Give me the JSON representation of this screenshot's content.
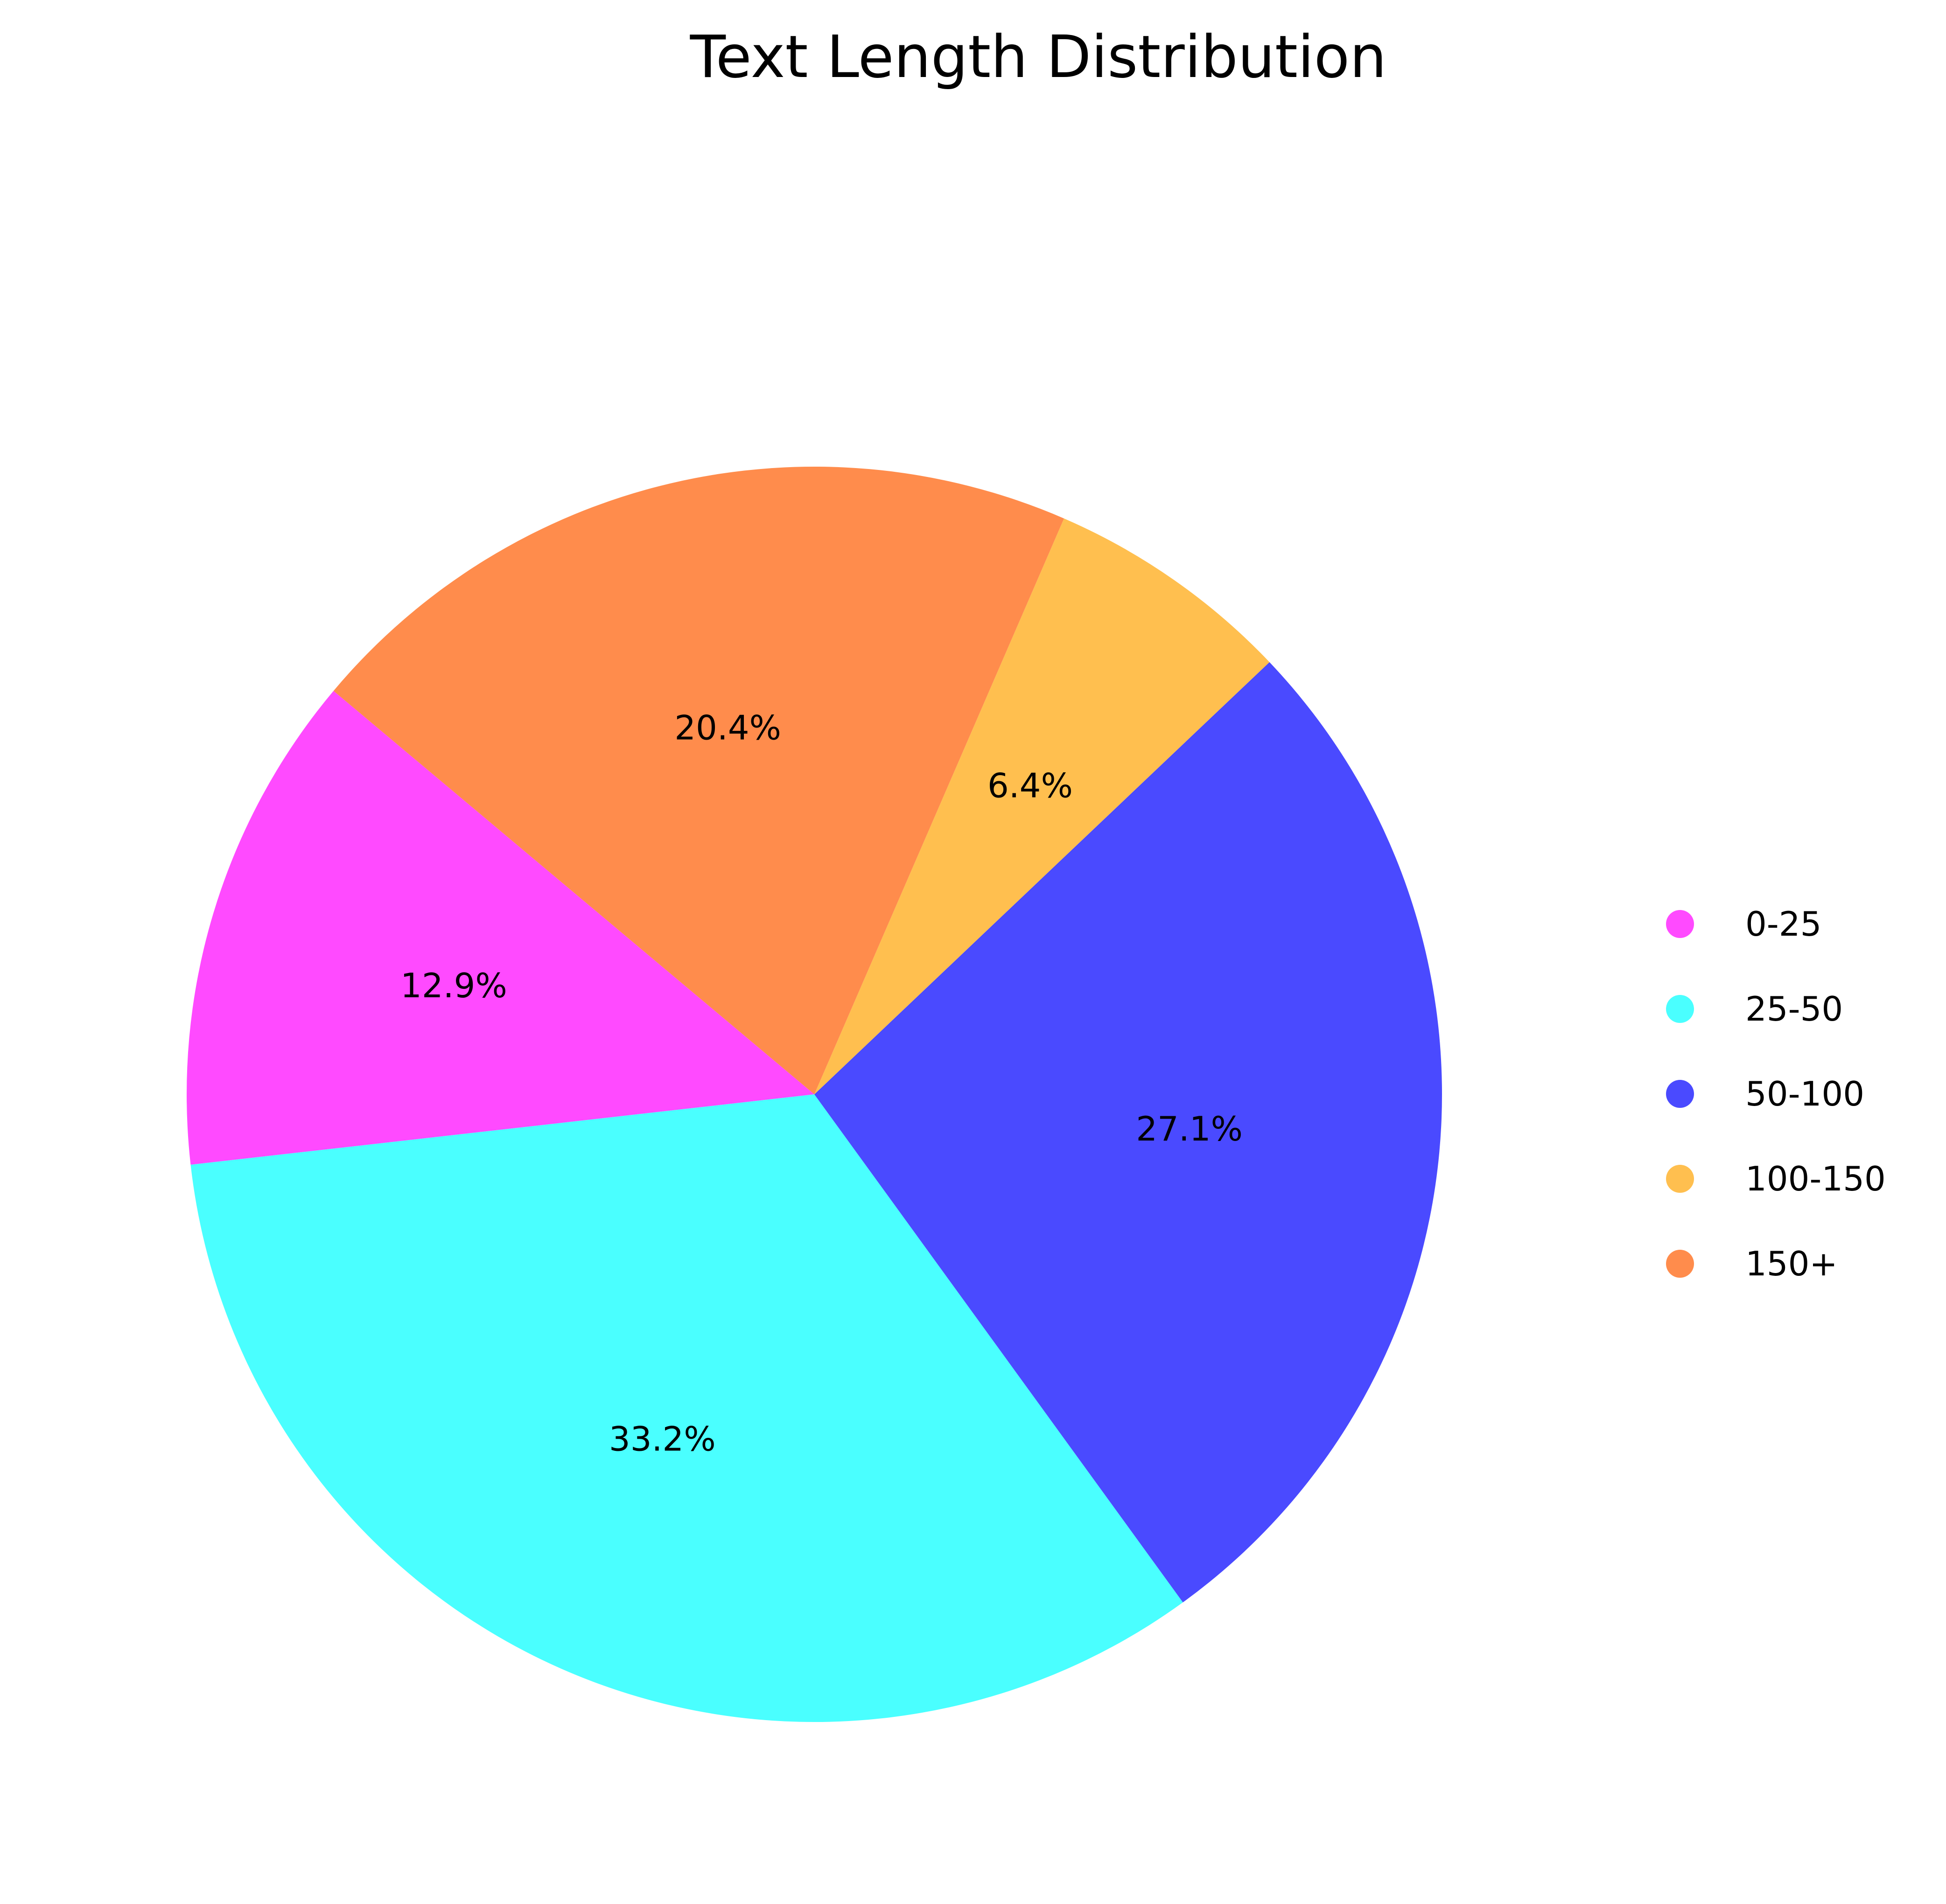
{
  "chart_data": {
    "type": "pie",
    "title": "Text Length Distribution",
    "categories": [
      "0-25",
      "25-50",
      "50-100",
      "100-150",
      "150+"
    ],
    "values": [
      12.9,
      33.2,
      27.1,
      6.4,
      20.4
    ],
    "labels": [
      "12.9%",
      "33.2%",
      "27.1%",
      "6.4%",
      "20.4%"
    ],
    "colors": [
      "#ff4aff",
      "#4affff",
      "#4a4aff",
      "#ffbf4f",
      "#ff8c4c"
    ],
    "start_angle_deg": 140,
    "direction": "counterclockwise",
    "legend": {
      "placement": "right",
      "entries": [
        "0-25",
        "25-50",
        "50-100",
        "100-150",
        "150+"
      ]
    }
  }
}
